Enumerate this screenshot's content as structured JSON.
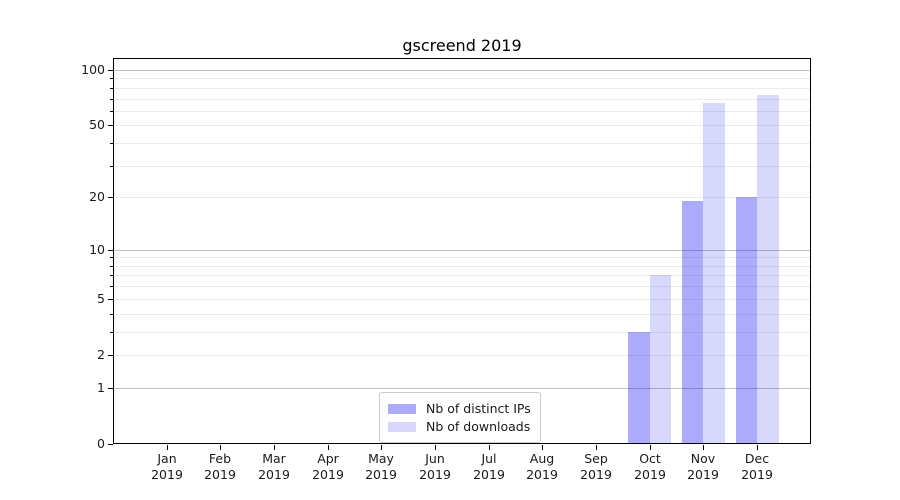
{
  "chart_data": {
    "type": "bar",
    "title": "gscreend 2019",
    "categories": [
      "Jan 2019",
      "Feb 2019",
      "Mar 2019",
      "Apr 2019",
      "May 2019",
      "Jun 2019",
      "Jul 2019",
      "Aug 2019",
      "Sep 2019",
      "Oct 2019",
      "Nov 2019",
      "Dec 2019"
    ],
    "series": [
      {
        "name": "Nb of distinct IPs",
        "color": "rgba(13,13,242,0.35)",
        "values": [
          0,
          0,
          0,
          0,
          0,
          0,
          0,
          0,
          0,
          3,
          19,
          20
        ]
      },
      {
        "name": "Nb of downloads",
        "color": "rgba(13,13,242,0.16)",
        "values": [
          0,
          0,
          0,
          0,
          0,
          0,
          0,
          0,
          0,
          7,
          66,
          73
        ]
      }
    ],
    "xlabel": "",
    "ylabel": "",
    "yscale": "log1p",
    "ylim": [
      0,
      115
    ],
    "yticks": [
      0,
      1,
      2,
      5,
      10,
      20,
      50,
      100
    ],
    "major_gridlines": [
      1,
      10,
      100
    ],
    "minor_gridlines": [
      2,
      3,
      4,
      5,
      6,
      7,
      8,
      9,
      20,
      30,
      40,
      50,
      60,
      70,
      80,
      90
    ],
    "grid": true,
    "legend_position": "lower center",
    "colors": {
      "major_grid": "#c0c0c0",
      "minor_grid": "#ececec",
      "axis": "#000000",
      "text": "#1a1a1a"
    }
  }
}
